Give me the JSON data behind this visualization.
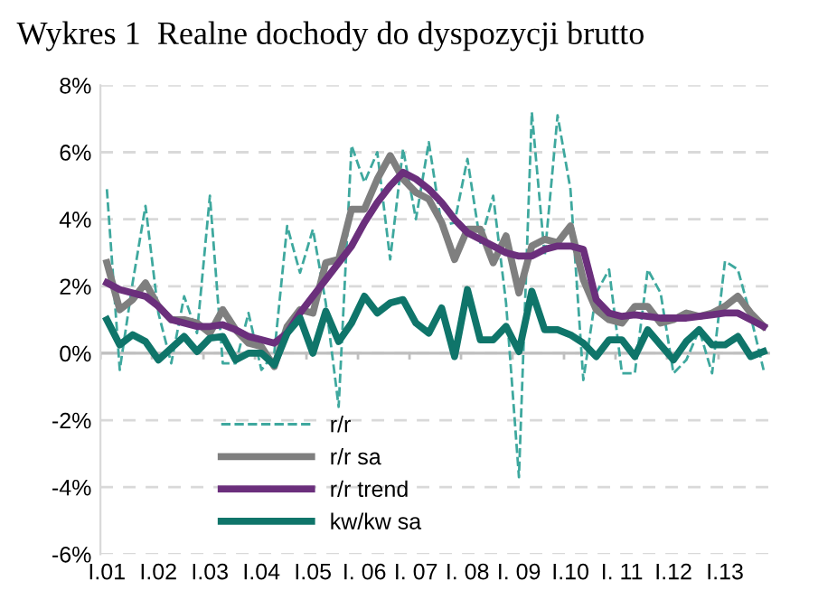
{
  "chart_data": {
    "type": "line",
    "title": "Wykres 1  Realne dochody do dyspozycji brutto",
    "categories": [
      "I.01",
      null,
      null,
      null,
      "I.02",
      null,
      null,
      null,
      "I.03",
      null,
      null,
      null,
      "I.04",
      null,
      null,
      null,
      "I.05",
      null,
      null,
      null,
      "I. 06",
      null,
      null,
      null,
      "I. 07",
      null,
      null,
      null,
      "I. 08",
      null,
      null,
      null,
      "I. 09",
      null,
      null,
      null,
      "I.10",
      null,
      null,
      null,
      "I. 11",
      null,
      null,
      null,
      "I.12",
      null,
      null,
      null,
      "I.13",
      null,
      null,
      null
    ],
    "series": [
      {
        "name": "r/r",
        "color": "#3ea89e",
        "line_style": "dashed",
        "values": [
          4.9,
          -0.5,
          2.1,
          4.4,
          1.2,
          -0.3,
          1.7,
          0.6,
          4.7,
          -0.3,
          -0.3,
          1.2,
          -0.5,
          0.0,
          3.8,
          2.4,
          3.7,
          1.5,
          -1.6,
          6.2,
          5.1,
          6.0,
          2.8,
          6.1,
          4.0,
          6.3,
          3.8,
          3.9,
          5.8,
          3.3,
          4.7,
          1.5,
          -3.7,
          7.2,
          2.9,
          7.1,
          4.9,
          -0.8,
          1.8,
          2.5,
          -0.6,
          -0.6,
          2.5,
          1.8,
          -0.6,
          -0.2,
          0.7,
          -0.6,
          2.75,
          2.5,
          1.1,
          -0.5
        ]
      },
      {
        "name": "r/r sa",
        "color": "#7f7f7f",
        "line_style": "solid",
        "values": [
          2.7,
          1.3,
          1.6,
          2.1,
          1.4,
          1.0,
          1.0,
          0.9,
          0.6,
          1.3,
          0.7,
          0.3,
          0.2,
          -0.4,
          0.8,
          1.3,
          1.2,
          2.7,
          2.8,
          4.3,
          4.3,
          5.2,
          5.9,
          5.2,
          4.8,
          4.6,
          3.9,
          2.8,
          3.7,
          3.7,
          2.7,
          3.5,
          1.8,
          3.2,
          3.4,
          3.3,
          3.8,
          2.2,
          1.3,
          1.0,
          0.9,
          1.4,
          1.4,
          0.9,
          1.0,
          1.2,
          1.1,
          1.2,
          1.4,
          1.7,
          1.2,
          0.8
        ]
      },
      {
        "name": "r/r trend",
        "color": "#6b2f7c",
        "line_style": "solid",
        "values": [
          2.1,
          1.9,
          1.8,
          1.7,
          1.4,
          1.0,
          0.9,
          0.8,
          0.8,
          0.85,
          0.7,
          0.5,
          0.4,
          0.3,
          0.6,
          1.2,
          1.7,
          2.2,
          2.7,
          3.2,
          3.9,
          4.5,
          5.0,
          5.4,
          5.2,
          4.9,
          4.5,
          4.0,
          3.6,
          3.4,
          3.2,
          3.0,
          2.9,
          2.9,
          3.1,
          3.2,
          3.2,
          3.1,
          1.6,
          1.2,
          1.1,
          1.15,
          1.1,
          1.05,
          1.05,
          1.05,
          1.1,
          1.15,
          1.2,
          1.2,
          1.0,
          0.8
        ]
      },
      {
        "name": "kw/kw sa",
        "color": "#0f756a",
        "line_style": "solid",
        "values": [
          1.0,
          0.25,
          0.55,
          0.35,
          -0.2,
          0.15,
          0.5,
          0.05,
          0.45,
          0.5,
          -0.2,
          0.0,
          0.0,
          -0.35,
          0.6,
          1.05,
          0.0,
          1.25,
          0.35,
          0.9,
          1.7,
          1.2,
          1.5,
          1.6,
          0.9,
          0.6,
          1.35,
          -0.1,
          1.9,
          0.4,
          0.4,
          0.8,
          0.05,
          1.85,
          0.7,
          0.7,
          0.55,
          0.3,
          -0.1,
          0.4,
          0.4,
          -0.1,
          0.7,
          0.25,
          -0.2,
          0.35,
          0.7,
          0.25,
          0.25,
          0.5,
          -0.1,
          0.05
        ]
      }
    ],
    "ylim": [
      -6,
      8
    ],
    "yticks": [
      {
        "value": -6,
        "label": "-6%"
      },
      {
        "value": -4,
        "label": "-4%"
      },
      {
        "value": -2,
        "label": "-2%"
      },
      {
        "value": 0,
        "label": "0%"
      },
      {
        "value": 2,
        "label": "2%"
      },
      {
        "value": 4,
        "label": "4%"
      },
      {
        "value": 6,
        "label": "6%"
      },
      {
        "value": 8,
        "label": "8%"
      }
    ],
    "grid": "y",
    "ref_lines": [
      {
        "axis": "y",
        "value": 0,
        "color": "#bfbfbf",
        "line_style": "solid"
      }
    ],
    "legend": "bottom left",
    "marker": "none"
  }
}
